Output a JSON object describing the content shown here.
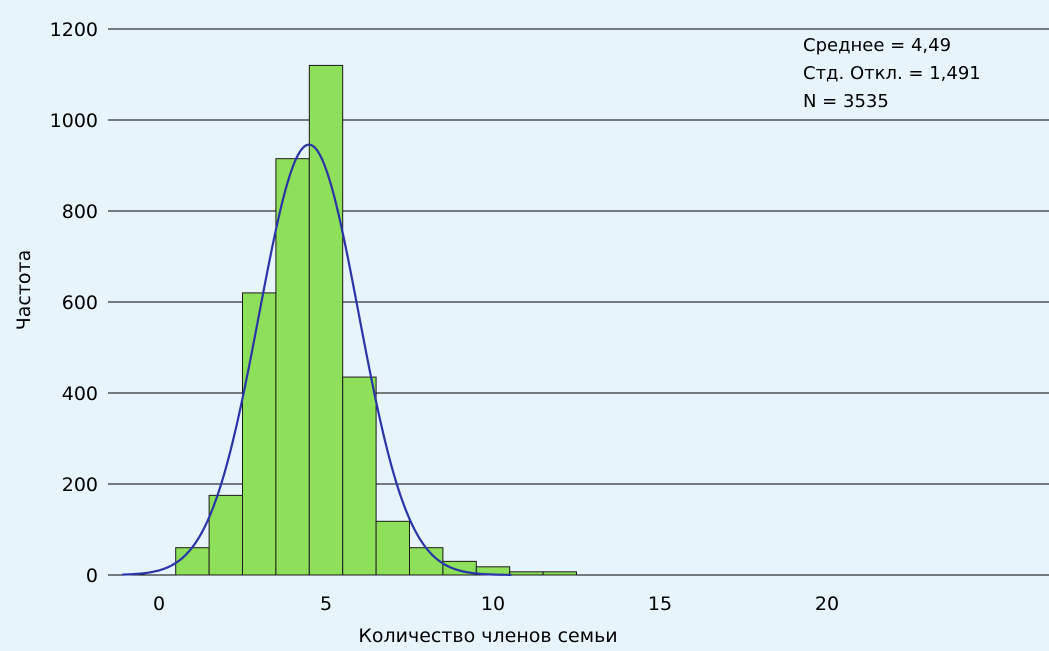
{
  "chart_data": {
    "type": "bar",
    "subtype": "histogram",
    "xlabel": "Количество членов семьи",
    "ylabel": "Частота",
    "xlim": [
      -1.2,
      26.5
    ],
    "ylim": [
      0,
      1200
    ],
    "xticks": [
      0,
      5,
      10,
      15,
      20
    ],
    "yticks": [
      0,
      200,
      400,
      600,
      800,
      1000,
      1200
    ],
    "grid": "horizontal",
    "bin_width": 1,
    "bins": [
      {
        "x": 1,
        "value": 60
      },
      {
        "x": 2,
        "value": 175
      },
      {
        "x": 3,
        "value": 620
      },
      {
        "x": 4,
        "value": 915
      },
      {
        "x": 5,
        "value": 1120
      },
      {
        "x": 6,
        "value": 435
      },
      {
        "x": 7,
        "value": 118
      },
      {
        "x": 8,
        "value": 60
      },
      {
        "x": 9,
        "value": 30
      },
      {
        "x": 10,
        "value": 18
      },
      {
        "x": 11,
        "value": 7
      },
      {
        "x": 12,
        "value": 7
      }
    ],
    "normal_curve": {
      "mean": 4.49,
      "std": 1.491,
      "n": 3535
    },
    "stats": [
      "Среднее = 4,49",
      "Стд. Откл. = 1,491",
      "N = 3535"
    ],
    "colors": {
      "background": "#e8f4fb",
      "bar_fill": "#8ee05a",
      "bar_stroke": "#1a1a1a",
      "curve": "#2a35a8",
      "grid": "#000000"
    }
  }
}
